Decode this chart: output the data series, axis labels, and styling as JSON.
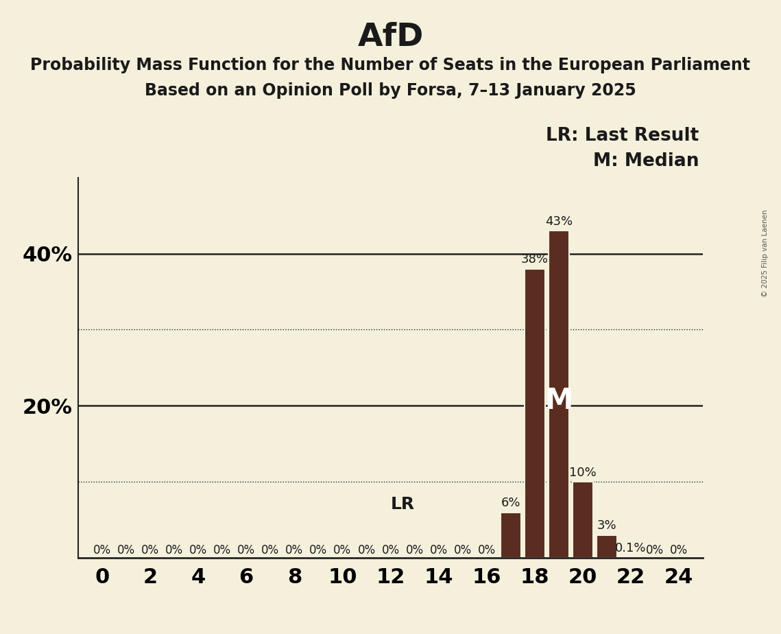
{
  "title": "AfD",
  "subtitle1": "Probability Mass Function for the Number of Seats in the European Parliament",
  "subtitle2": "Based on an Opinion Poll by Forsa, 7–13 January 2025",
  "copyright": "© 2025 Filip van Laenen",
  "x_min": 0,
  "x_max": 24,
  "y_min": 0,
  "y_max": 0.5,
  "bars": {
    "0": 0.0,
    "1": 0.0,
    "2": 0.0,
    "3": 0.0,
    "4": 0.0,
    "5": 0.0,
    "6": 0.0,
    "7": 0.0,
    "8": 0.0,
    "9": 0.0,
    "10": 0.0,
    "11": 0.0,
    "12": 0.0,
    "13": 0.0,
    "14": 0.0,
    "15": 0.0,
    "16": 0.0,
    "17": 0.06,
    "18": 0.38,
    "19": 0.43,
    "20": 0.1,
    "21": 0.03,
    "22": 0.001,
    "23": 0.0,
    "24": 0.0
  },
  "bar_color": "#5a2d20",
  "bar_edge_color": "#f5f0dc",
  "bar_linewidth": 1.5,
  "background_color": "#f5f0dc",
  "grid_color": "#222222",
  "dotted_grid_levels": [
    0.1,
    0.3
  ],
  "solid_grid_levels": [
    0.2,
    0.4
  ],
  "lr_seat": 17,
  "median_seat": 19,
  "median_label": "M",
  "lr_label": "LR",
  "lr_legend": "LR: Last Result",
  "m_legend": "M: Median",
  "bar_labels": {
    "17": "6%",
    "18": "38%",
    "19": "43%",
    "20": "10%",
    "21": "3%",
    "22": "0.1%"
  },
  "zero_labels_seats": [
    0,
    1,
    2,
    3,
    4,
    5,
    6,
    7,
    8,
    9,
    10,
    11,
    12,
    13,
    14,
    15,
    16,
    23,
    24
  ],
  "x_ticks": [
    0,
    2,
    4,
    6,
    8,
    10,
    12,
    14,
    16,
    18,
    20,
    22,
    24
  ],
  "title_fontsize": 34,
  "subtitle_fontsize": 17,
  "bar_label_fontsize": 13,
  "zero_label_fontsize": 12,
  "tick_fontsize": 22,
  "legend_fontsize": 19,
  "ytick_label_fontsize": 22
}
